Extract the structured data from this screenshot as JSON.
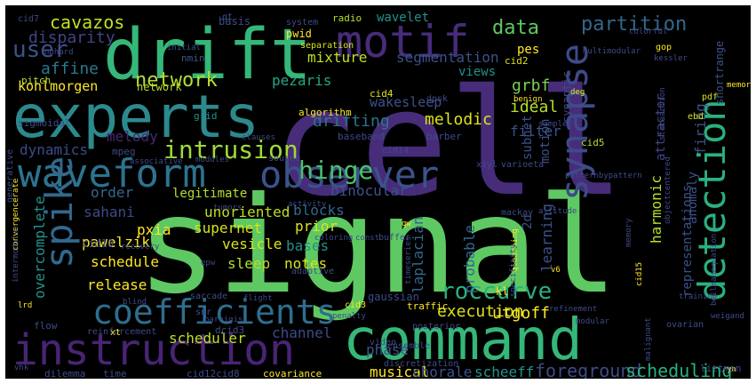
{
  "background": "#000000",
  "frame_color": "#ffffff",
  "palette": [
    "#440154",
    "#3b528b",
    "#21918c",
    "#5ec962",
    "#fde725"
  ],
  "words": [
    {
      "text": "signal",
      "color": "#5ec962",
      "weight": 10,
      "vertical": false
    },
    {
      "text": "cell",
      "color": "#472c7a",
      "weight": 10,
      "vertical": false
    },
    {
      "text": "command",
      "color": "#35b779",
      "weight": 8,
      "vertical": false
    },
    {
      "text": "experts",
      "color": "#2c8a8d",
      "weight": 8,
      "vertical": false
    },
    {
      "text": "drift",
      "color": "#35b779",
      "weight": 8,
      "vertical": false
    },
    {
      "text": "motif",
      "color": "#472c7a",
      "weight": 7,
      "vertical": false
    },
    {
      "text": "instruction",
      "color": "#482475",
      "weight": 7,
      "vertical": false
    },
    {
      "text": "waveform",
      "color": "#2c738e",
      "weight": 6,
      "vertical": false
    },
    {
      "text": "observer",
      "color": "#3b528b",
      "weight": 6,
      "vertical": false
    },
    {
      "text": "detection",
      "color": "#2ab07f",
      "weight": 6,
      "vertical": true
    },
    {
      "text": "spike",
      "color": "#31688e",
      "weight": 6,
      "vertical": true
    },
    {
      "text": "synapse",
      "color": "#3e4a89",
      "weight": 6,
      "vertical": true
    },
    {
      "text": "coefficients",
      "color": "#2e6e8e",
      "weight": 5,
      "vertical": false
    },
    {
      "text": "intrusion",
      "color": "#a0da39",
      "weight": 4,
      "vertical": false
    },
    {
      "text": "hinge",
      "color": "#4ac16d",
      "weight": 4,
      "vertical": false
    },
    {
      "text": "user",
      "color": "#3b528b",
      "weight": 4,
      "vertical": false
    },
    {
      "text": "partition",
      "color": "#31688e",
      "weight": 3,
      "vertical": false
    },
    {
      "text": "data",
      "color": "#5ec962",
      "weight": 3,
      "vertical": false
    },
    {
      "text": "network",
      "color": "#b5de2b",
      "weight": 3,
      "vertical": false
    },
    {
      "text": "roccurve",
      "color": "#2ab07f",
      "weight": 3,
      "vertical": false
    },
    {
      "text": "representations",
      "color": "#3b528b",
      "weight": 2,
      "vertical": true
    },
    {
      "text": "foreground",
      "color": "#3e4a89",
      "weight": 2,
      "vertical": false
    },
    {
      "text": "scheduling",
      "color": "#2ab07f",
      "weight": 2,
      "vertical": false
    },
    {
      "text": "attractor",
      "color": "#404387",
      "weight": 2,
      "vertical": true
    },
    {
      "text": "cavazos",
      "color": "#c2df23",
      "weight": 2,
      "vertical": false
    },
    {
      "text": "disparity",
      "color": "#414487",
      "weight": 2,
      "vertical": false
    },
    {
      "text": "affine",
      "color": "#2a788e",
      "weight": 2,
      "vertical": false
    },
    {
      "text": "kohlmorgen",
      "color": "#fde725",
      "weight": 2,
      "vertical": false
    },
    {
      "text": "pezaris",
      "color": "#22a884",
      "weight": 2,
      "vertical": false
    },
    {
      "text": "mixture",
      "color": "#c2df23",
      "weight": 2,
      "vertical": false
    },
    {
      "text": "segmentation",
      "color": "#3b528b",
      "weight": 2,
      "vertical": false
    },
    {
      "text": "grbf",
      "color": "#7ad151",
      "weight": 2,
      "vertical": false
    },
    {
      "text": "views",
      "color": "#21918c",
      "weight": 2,
      "vertical": false
    },
    {
      "text": "ideal",
      "color": "#b5de2b",
      "weight": 2,
      "vertical": false
    },
    {
      "text": "wakesleep",
      "color": "#3b528b",
      "weight": 2,
      "vertical": false
    },
    {
      "text": "drifting",
      "color": "#2c728e",
      "weight": 2,
      "vertical": false
    },
    {
      "text": "melodic",
      "color": "#dde318",
      "weight": 2,
      "vertical": false
    },
    {
      "text": "melody",
      "color": "#482878",
      "weight": 2,
      "vertical": false
    },
    {
      "text": "dynamics",
      "color": "#3e4a89",
      "weight": 2,
      "vertical": false
    },
    {
      "text": "filter",
      "color": "#3b528b",
      "weight": 2,
      "vertical": false
    },
    {
      "text": "order",
      "color": "#31688e",
      "weight": 2,
      "vertical": false
    },
    {
      "text": "legitimate",
      "color": "#b5de2b",
      "weight": 2,
      "vertical": false
    },
    {
      "text": "unoriented",
      "color": "#bddf26",
      "weight": 2,
      "vertical": false
    },
    {
      "text": "binocular",
      "color": "#3b528b",
      "weight": 2,
      "vertical": false
    },
    {
      "text": "sahani",
      "color": "#3e4a89",
      "weight": 2,
      "vertical": false
    },
    {
      "text": "pxia",
      "color": "#fde725",
      "weight": 2,
      "vertical": false
    },
    {
      "text": "supernet",
      "color": "#d8e219",
      "weight": 2,
      "vertical": false
    },
    {
      "text": "pawelzik",
      "color": "#fde725",
      "weight": 2,
      "vertical": false
    },
    {
      "text": "vesicle",
      "color": "#dde318",
      "weight": 2,
      "vertical": false
    },
    {
      "text": "schedule",
      "color": "#fde725",
      "weight": 2,
      "vertical": false
    },
    {
      "text": "sleep",
      "color": "#b5de2b",
      "weight": 2,
      "vertical": false
    },
    {
      "text": "notes",
      "color": "#dde318",
      "weight": 2,
      "vertical": false
    },
    {
      "text": "blocks",
      "color": "#31688e",
      "weight": 2,
      "vertical": false
    },
    {
      "text": "prior",
      "color": "#dde318",
      "weight": 2,
      "vertical": false
    },
    {
      "text": "bases",
      "color": "#21918c",
      "weight": 2,
      "vertical": false
    },
    {
      "text": "release",
      "color": "#fde725",
      "weight": 2,
      "vertical": false
    },
    {
      "text": "execution",
      "color": "#dde318",
      "weight": 2,
      "vertical": false
    },
    {
      "text": "utgoff",
      "color": "#fde725",
      "weight": 2,
      "vertical": false
    },
    {
      "text": "scheduler",
      "color": "#c2df23",
      "weight": 2,
      "vertical": false
    },
    {
      "text": "channel",
      "color": "#3e4a89",
      "weight": 2,
      "vertical": false
    },
    {
      "text": "phase",
      "color": "#3b528b",
      "weight": 2,
      "vertical": false
    },
    {
      "text": "musical",
      "color": "#fde725",
      "weight": 2,
      "vertical": false
    },
    {
      "text": "chorale",
      "color": "#3b528b",
      "weight": 2,
      "vertical": false
    },
    {
      "text": "scheeff",
      "color": "#21918c",
      "weight": 2,
      "vertical": false
    },
    {
      "text": "learning",
      "color": "#3b528b",
      "weight": 2,
      "vertical": true
    },
    {
      "text": "harmonic",
      "color": "#b5de2b",
      "weight": 2,
      "vertical": true
    },
    {
      "text": "laplacian",
      "color": "#31688e",
      "weight": 2,
      "vertical": true
    },
    {
      "text": "probable",
      "color": "#31688e",
      "weight": 2,
      "vertical": true
    },
    {
      "text": "overcomplete",
      "color": "#21918c",
      "weight": 2,
      "vertical": true
    },
    {
      "text": "firing",
      "color": "#3b528b",
      "weight": 2,
      "vertical": true
    },
    {
      "text": "anomaly",
      "color": "#3b528b",
      "weight": 2,
      "vertical": true
    },
    {
      "text": "motion",
      "color": "#3b528b",
      "weight": 2,
      "vertical": true
    },
    {
      "text": "subnet",
      "color": "#3b528b",
      "weight": 2,
      "vertical": true
    },
    {
      "text": "synaptic",
      "color": "#3e4a89",
      "weight": 1,
      "vertical": true
    },
    {
      "text": "shortrange",
      "color": "#3b528b",
      "weight": 1,
      "vertical": true
    },
    {
      "text": "2d",
      "color": "#3b528b",
      "weight": 2,
      "vertical": true
    },
    {
      "text": "basis",
      "color": "#3e4a89",
      "weight": 1,
      "vertical": false
    },
    {
      "text": "network",
      "color": "#b5de2b",
      "weight": 1,
      "vertical": false
    },
    {
      "text": "qt",
      "color": "#3b528b",
      "weight": 1,
      "vertical": false
    },
    {
      "text": "system",
      "color": "#3e4a89",
      "weight": 1,
      "vertical": false
    },
    {
      "text": "radio",
      "color": "#b5de2b",
      "weight": 1,
      "vertical": false
    },
    {
      "text": "wavelet",
      "color": "#21918c",
      "weight": 1,
      "vertical": false
    },
    {
      "text": "pwid",
      "color": "#fde725",
      "weight": 1,
      "vertical": false
    },
    {
      "text": "separation",
      "color": "#d8e219",
      "weight": 1,
      "vertical": false
    },
    {
      "text": "cid7",
      "color": "#3e4a89",
      "weight": 1,
      "vertical": false
    },
    {
      "text": "nphard",
      "color": "#3e4a89",
      "weight": 1,
      "vertical": false
    },
    {
      "text": "initial",
      "color": "#3b528b",
      "weight": 1,
      "vertical": false
    },
    {
      "text": "nmin",
      "color": "#3b528b",
      "weight": 1,
      "vertical": false
    },
    {
      "text": "pitch",
      "color": "#b5de2b",
      "weight": 1,
      "vertical": false
    },
    {
      "text": "pes",
      "color": "#fde725",
      "weight": 1,
      "vertical": false
    },
    {
      "text": "cid2",
      "color": "#d8e219",
      "weight": 1,
      "vertical": false
    },
    {
      "text": "cid4",
      "color": "#dde318",
      "weight": 1,
      "vertical": false
    },
    {
      "text": "algorithm",
      "color": "#fde725",
      "weight": 1,
      "vertical": false
    },
    {
      "text": "dpsk",
      "color": "#3e4a89",
      "weight": 1,
      "vertical": false
    },
    {
      "text": "benign",
      "color": "#fde725",
      "weight": 1,
      "vertical": false
    },
    {
      "text": "deg",
      "color": "#dde318",
      "weight": 1,
      "vertical": false
    },
    {
      "text": "kessler",
      "color": "#3e4a89",
      "weight": 1,
      "vertical": false
    },
    {
      "text": "multimodular",
      "color": "#3e4a89",
      "weight": 1,
      "vertical": false
    },
    {
      "text": "colorful",
      "color": "#3e4a89",
      "weight": 1,
      "vertical": false
    },
    {
      "text": "gop",
      "color": "#fde725",
      "weight": 1,
      "vertical": false
    },
    {
      "text": "pdf",
      "color": "#dde318",
      "weight": 1,
      "vertical": false
    },
    {
      "text": "ebd",
      "color": "#dde318",
      "weight": 1,
      "vertical": false
    },
    {
      "text": "memories",
      "color": "#fde725",
      "weight": 1,
      "vertical": false
    },
    {
      "text": "grid",
      "color": "#21918c",
      "weight": 1,
      "vertical": false
    },
    {
      "text": "mpeg",
      "color": "#3e4a89",
      "weight": 1,
      "vertical": false
    },
    {
      "text": "sigmoidal",
      "color": "#3e4a89",
      "weight": 1,
      "vertical": false
    },
    {
      "text": "baseband",
      "color": "#3e4a89",
      "weight": 1,
      "vertical": false
    },
    {
      "text": "barber",
      "color": "#3e4a89",
      "weight": 1,
      "vertical": false
    },
    {
      "text": "samples",
      "color": "#3e4a89",
      "weight": 1,
      "vertical": false
    },
    {
      "text": "cid14",
      "color": "#3e4a89",
      "weight": 1,
      "vertical": false
    },
    {
      "text": "cid5",
      "color": "#b5de2b",
      "weight": 1,
      "vertical": false
    },
    {
      "text": "xiyl",
      "color": "#3e4a89",
      "weight": 1,
      "vertical": false
    },
    {
      "text": "varioeta",
      "color": "#3e4a89",
      "weight": 1,
      "vertical": false
    },
    {
      "text": "associative",
      "color": "#3e4a89",
      "weight": 1,
      "vertical": false
    },
    {
      "text": "clauses",
      "color": "#3e4a89",
      "weight": 1,
      "vertical": false
    },
    {
      "text": "modules",
      "color": "#3e4a89",
      "weight": 1,
      "vertical": false
    },
    {
      "text": "source",
      "color": "#3e4a89",
      "weight": 1,
      "vertical": false
    },
    {
      "text": "patternbypattern",
      "color": "#3e4a89",
      "weight": 1,
      "vertical": false
    },
    {
      "text": "stateaction",
      "color": "#3e4a89",
      "weight": 1,
      "vertical": false
    },
    {
      "text": "generative",
      "color": "#3e4a89",
      "weight": 1,
      "vertical": true
    },
    {
      "text": "epw",
      "color": "#3e4a89",
      "weight": 1,
      "vertical": false
    },
    {
      "text": "tumors",
      "color": "#3e4a89",
      "weight": 1,
      "vertical": false
    },
    {
      "text": "activity",
      "color": "#3e4a89",
      "weight": 1,
      "vertical": false
    },
    {
      "text": "mackay",
      "color": "#3e4a89",
      "weight": 1,
      "vertical": false
    },
    {
      "text": "qw",
      "color": "#fde725",
      "weight": 1,
      "vertical": false
    },
    {
      "text": "altitude",
      "color": "#3e4a89",
      "weight": 1,
      "vertical": false
    },
    {
      "text": "objectcentered",
      "color": "#3e4a89",
      "weight": 1,
      "vertical": false
    },
    {
      "text": "convergencerate",
      "color": "#fde725",
      "weight": 1,
      "vertical": true
    },
    {
      "text": "cid10",
      "color": "#3e4a89",
      "weight": 1,
      "vertical": false
    },
    {
      "text": "lrd",
      "color": "#fde725",
      "weight": 1,
      "vertical": false
    },
    {
      "text": "recovery",
      "color": "#3e4a89",
      "weight": 1,
      "vertical": false
    },
    {
      "text": "coloring",
      "color": "#3e4a89",
      "weight": 1,
      "vertical": false
    },
    {
      "text": "buffer",
      "color": "#3e4a89",
      "weight": 1,
      "vertical": false
    },
    {
      "text": "const",
      "color": "#3e4a89",
      "weight": 1,
      "vertical": false
    },
    {
      "text": "memory",
      "color": "#3e4a89",
      "weight": 1,
      "vertical": false
    },
    {
      "text": "bellmanequation",
      "color": "#3e4a89",
      "weight": 1,
      "vertical": true
    },
    {
      "text": "timeseries",
      "color": "#3e4a89",
      "weight": 1,
      "vertical": true
    },
    {
      "text": "qlearning",
      "color": "#fde725",
      "weight": 1,
      "vertical": true
    },
    {
      "text": "specificity",
      "color": "#3e4a89",
      "weight": 1,
      "vertical": true
    },
    {
      "text": "cid15",
      "color": "#fde725",
      "weight": 1,
      "vertical": true
    },
    {
      "text": "v6",
      "color": "#fde725",
      "weight": 1,
      "vertical": false
    },
    {
      "text": "blind",
      "color": "#3e4a89",
      "weight": 1,
      "vertical": false
    },
    {
      "text": "saccade",
      "color": "#3e4a89",
      "weight": 1,
      "vertical": false
    },
    {
      "text": "adaptive",
      "color": "#3e4a89",
      "weight": 1,
      "vertical": false
    },
    {
      "text": "gaussian",
      "color": "#3e4a89",
      "weight": 1,
      "vertical": false
    },
    {
      "text": "kl",
      "color": "#fde725",
      "weight": 1,
      "vertical": false
    },
    {
      "text": "snr",
      "color": "#3e4a89",
      "weight": 1,
      "vertical": false
    },
    {
      "text": "pareigis",
      "color": "#3e4a89",
      "weight": 1,
      "vertical": false
    },
    {
      "text": "flight",
      "color": "#3e4a89",
      "weight": 1,
      "vertical": false
    },
    {
      "text": "training",
      "color": "#3e4a89",
      "weight": 1,
      "vertical": false
    },
    {
      "text": "weigand",
      "color": "#3e4a89",
      "weight": 1,
      "vertical": false
    },
    {
      "text": "flow",
      "color": "#3e4a89",
      "weight": 1,
      "vertical": false
    },
    {
      "text": "reinforcement",
      "color": "#3e4a89",
      "weight": 1,
      "vertical": false
    },
    {
      "text": "xt",
      "color": "#fde725",
      "weight": 1,
      "vertical": false
    },
    {
      "text": "dcid3",
      "color": "#3e4a89",
      "weight": 1,
      "vertical": false
    },
    {
      "text": "cid3",
      "color": "#fde725",
      "weight": 1,
      "vertical": false
    },
    {
      "text": "traffic",
      "color": "#fde725",
      "weight": 1,
      "vertical": false
    },
    {
      "text": "posterior",
      "color": "#3e4a89",
      "weight": 1,
      "vertical": false
    },
    {
      "text": "refinement",
      "color": "#3e4a89",
      "weight": 1,
      "vertical": false
    },
    {
      "text": "penalty",
      "color": "#3e4a89",
      "weight": 1,
      "vertical": false
    },
    {
      "text": "modular",
      "color": "#3e4a89",
      "weight": 1,
      "vertical": false
    },
    {
      "text": "ovarian",
      "color": "#3e4a89",
      "weight": 1,
      "vertical": false
    },
    {
      "text": "yn",
      "color": "#fde725",
      "weight": 1,
      "vertical": false
    },
    {
      "text": "dilemma",
      "color": "#3e4a89",
      "weight": 1,
      "vertical": false
    },
    {
      "text": "time",
      "color": "#3e4a89",
      "weight": 1,
      "vertical": false
    },
    {
      "text": "cid12cid8",
      "color": "#3e4a89",
      "weight": 1,
      "vertical": false
    },
    {
      "text": "covariance",
      "color": "#fde725",
      "weight": 1,
      "vertical": false
    },
    {
      "text": "discretization",
      "color": "#3e4a89",
      "weight": 1,
      "vertical": false
    },
    {
      "text": "ensemble",
      "color": "#3e4a89",
      "weight": 1,
      "vertical": false
    },
    {
      "text": "littman",
      "color": "#3e4a89",
      "weight": 1,
      "vertical": false
    },
    {
      "text": "video",
      "color": "#3e4a89",
      "weight": 1,
      "vertical": false
    },
    {
      "text": "vhk",
      "color": "#3e4a89",
      "weight": 1,
      "vertical": false
    },
    {
      "text": "intermodular",
      "color": "#3e4a89",
      "weight": 1,
      "vertical": false
    },
    {
      "text": "malignant",
      "color": "#3e4a89",
      "weight": 1,
      "vertical": true
    },
    {
      "text": "convergence",
      "color": "#3e4a89",
      "weight": 1,
      "vertical": true
    }
  ]
}
